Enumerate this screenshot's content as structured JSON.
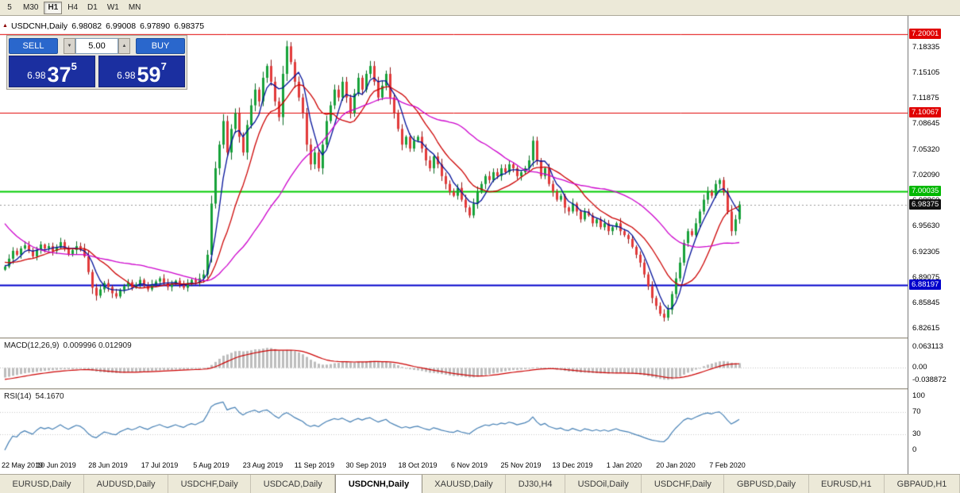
{
  "toolbar": {
    "timeframes": [
      {
        "label": "5"
      },
      {
        "label": "M30"
      },
      {
        "label": "H1",
        "active": true
      },
      {
        "label": "H4"
      },
      {
        "label": "D1"
      },
      {
        "label": "W1"
      },
      {
        "label": "MN"
      }
    ]
  },
  "icons": {
    "chart_arrow": "▲",
    "vol_down": "▼",
    "vol_up": "▲"
  },
  "chart_header": {
    "symbol": "USDCNH,Daily",
    "open": "6.98082",
    "high": "6.99008",
    "low": "6.97890",
    "close": "6.98375"
  },
  "trade_panel": {
    "sell_label": "SELL",
    "buy_label": "BUY",
    "volume": "5.00",
    "sell_price": {
      "base": "6.98",
      "big": "37",
      "sup": "5"
    },
    "buy_price": {
      "base": "6.98",
      "big": "59",
      "sup": "7"
    }
  },
  "price_axis": {
    "labels": [
      "7.18335",
      "7.15105",
      "7.11875",
      "7.08645",
      "7.05320",
      "7.02090",
      "6.98860",
      "6.95630",
      "6.92305",
      "6.89075",
      "6.85845",
      "6.82615"
    ],
    "badges": [
      {
        "text": "7.20001",
        "price": 7.20001,
        "color": "#e00000"
      },
      {
        "text": "7.10067",
        "price": 7.10067,
        "color": "#e00000"
      },
      {
        "text": "7.00035",
        "price": 7.00035,
        "color": "#00b800"
      },
      {
        "text": "6.98375",
        "price": 6.98375,
        "color": "#111111"
      },
      {
        "text": "6.88197",
        "price": 6.88197,
        "color": "#0000cc"
      }
    ]
  },
  "macd_panel": {
    "label": "MACD(12,26,9)",
    "values": "0.009996 0.012909",
    "axis": [
      {
        "text": "0.063113",
        "v": 0.063113
      },
      {
        "text": "0.00",
        "v": 0
      },
      {
        "text": "-0.038872",
        "v": -0.038872
      }
    ]
  },
  "rsi_panel": {
    "label": "RSI(14)",
    "value": "54.1670",
    "axis": [
      {
        "text": "100",
        "v": 100
      },
      {
        "text": "70",
        "v": 70
      },
      {
        "text": "30",
        "v": 30
      },
      {
        "text": "0",
        "v": 0
      }
    ]
  },
  "date_axis": [
    {
      "label": "22 May 2019",
      "index": 0
    },
    {
      "label": "10 Jun 2019",
      "index": 13
    },
    {
      "label": "28 Jun 2019",
      "index": 26
    },
    {
      "label": "17 Jul 2019",
      "index": 39
    },
    {
      "label": "5 Aug 2019",
      "index": 52
    },
    {
      "label": "23 Aug 2019",
      "index": 65
    },
    {
      "label": "11 Sep 2019",
      "index": 78
    },
    {
      "label": "30 Sep 2019",
      "index": 91
    },
    {
      "label": "18 Oct 2019",
      "index": 104
    },
    {
      "label": "6 Nov 2019",
      "index": 117
    },
    {
      "label": "25 Nov 2019",
      "index": 130
    },
    {
      "label": "13 Dec 2019",
      "index": 143
    },
    {
      "label": "1 Jan 2020",
      "index": 156
    },
    {
      "label": "20 Jan 2020",
      "index": 169
    },
    {
      "label": "7 Feb 2020",
      "index": 182
    }
  ],
  "tabs": [
    {
      "label": "EURUSD,Daily"
    },
    {
      "label": "AUDUSD,Daily"
    },
    {
      "label": "USDCHF,Daily"
    },
    {
      "label": "USDCAD,Daily"
    },
    {
      "label": "USDCNH,Daily",
      "active": true
    },
    {
      "label": "XAUUSD,Daily"
    },
    {
      "label": "DJ30,H4"
    },
    {
      "label": "USDOil,Daily"
    },
    {
      "label": "USDCHF,Daily"
    },
    {
      "label": "GBPUSD,Daily"
    },
    {
      "label": "EURUSD,H1"
    },
    {
      "label": "GBPAUD,H1"
    }
  ],
  "chart_data": {
    "type": "candlestick",
    "title": "USDCNH, Daily",
    "ohlc": {
      "open": 6.98082,
      "high": 6.99008,
      "low": 6.9789,
      "close": 6.98375
    },
    "view": {
      "price_top": 7.22373,
      "price_bottom": 6.81492
    },
    "macd_view": {
      "v_top": 0.063113,
      "v_bottom": -0.038872
    },
    "hlines": [
      {
        "price": 7.20001,
        "color": "#e00000",
        "width": 1
      },
      {
        "price": 7.10067,
        "color": "#e00000",
        "width": 1
      },
      {
        "price": 7.00035,
        "color": "#00cc00",
        "width": 2
      },
      {
        "price": 6.98375,
        "color": "#999999",
        "width": 1,
        "dash": [
          2,
          3
        ]
      },
      {
        "price": 6.88197,
        "color": "#0000cc",
        "width": 2
      }
    ],
    "ma_lines": [
      {
        "period": 5,
        "color": "#001099"
      },
      {
        "period": 13,
        "color": "#cc0000"
      },
      {
        "period": 34,
        "color": "#cc00cc"
      }
    ],
    "colors": {
      "up": "#17a23a",
      "up_edge": "#0a6b23",
      "down": "#e23a3a",
      "down_edge": "#8d1515",
      "macd_hist": "#bdbdbd",
      "macd_signal": "#cc0000",
      "rsi": "#4781b5"
    },
    "history_closes": [
      7.15,
      7.12,
      7.1,
      7.08,
      7.06,
      7.05,
      7.03,
      7.02,
      7.0,
      6.99,
      6.98,
      6.97,
      6.96,
      6.955,
      6.95,
      6.945,
      6.94,
      6.935,
      6.93,
      6.928,
      6.925,
      6.923,
      6.92,
      6.918,
      6.916,
      6.914,
      6.912,
      6.91,
      6.909,
      6.908,
      6.907,
      6.906,
      6.905,
      6.905
    ],
    "closes": [
      6.905,
      6.915,
      6.925,
      6.92,
      6.928,
      6.932,
      6.925,
      6.918,
      6.926,
      6.933,
      6.928,
      6.931,
      6.925,
      6.93,
      6.936,
      6.928,
      6.921,
      6.926,
      6.931,
      6.928,
      6.918,
      6.898,
      6.878,
      6.868,
      6.876,
      6.884,
      6.879,
      6.871,
      6.867,
      6.875,
      6.88,
      6.885,
      6.878,
      6.882,
      6.888,
      6.881,
      6.876,
      6.882,
      6.886,
      6.89,
      6.884,
      6.879,
      6.883,
      6.887,
      6.882,
      6.878,
      6.884,
      6.888,
      6.885,
      6.89,
      6.895,
      6.92,
      6.985,
      7.03,
      7.06,
      7.09,
      7.05,
      7.08,
      7.1,
      7.07,
      7.05,
      7.085,
      7.11,
      7.13,
      7.115,
      7.145,
      7.16,
      7.14,
      7.115,
      7.095,
      7.15,
      7.185,
      7.165,
      7.14,
      7.12,
      7.1,
      7.06,
      7.035,
      7.05,
      7.03,
      7.06,
      7.09,
      7.11,
      7.13,
      7.12,
      7.14,
      7.12,
      7.1,
      7.125,
      7.145,
      7.13,
      7.15,
      7.16,
      7.14,
      7.12,
      7.135,
      7.15,
      7.12,
      7.1,
      7.08,
      7.06,
      7.07,
      7.055,
      7.065,
      7.07,
      7.055,
      7.04,
      7.03,
      7.045,
      7.035,
      7.02,
      7.01,
      7.0,
      6.995,
      7.005,
      6.99,
      6.98,
      6.97,
      6.985,
      7.0,
      7.01,
      7.02,
      7.015,
      7.025,
      7.02,
      7.03,
      7.025,
      7.035,
      7.03,
      7.02,
      7.025,
      7.03,
      7.04,
      7.065,
      7.04,
      7.02,
      7.03,
      7.01,
      7.0,
      6.99,
      6.995,
      6.98,
      6.975,
      6.985,
      6.975,
      6.965,
      6.975,
      6.97,
      6.96,
      6.965,
      6.955,
      6.96,
      6.95,
      6.955,
      6.96,
      6.95,
      6.945,
      6.94,
      6.93,
      6.92,
      6.91,
      6.895,
      6.88,
      6.865,
      6.855,
      6.845,
      6.84,
      6.85,
      6.87,
      6.89,
      6.91,
      6.935,
      6.95,
      6.945,
      6.96,
      6.975,
      6.99,
      7.0,
      6.995,
      7.01,
      7.015,
      7.0,
      6.975,
      6.95,
      6.965,
      6.984
    ]
  }
}
